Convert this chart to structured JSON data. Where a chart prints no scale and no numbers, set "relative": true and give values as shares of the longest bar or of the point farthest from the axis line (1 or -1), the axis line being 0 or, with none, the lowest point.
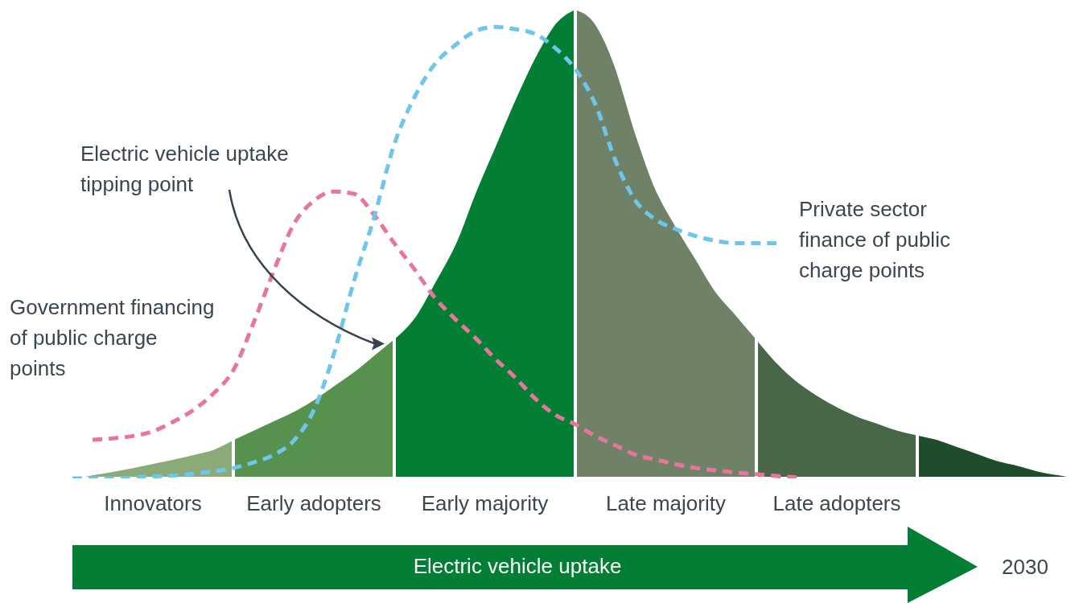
{
  "chart_data": {
    "type": "area",
    "relative": true,
    "xlabel": "Electric vehicle uptake",
    "annotations": [
      "Electric vehicle uptake tipping point",
      "2030"
    ],
    "categories": [
      null,
      null,
      null,
      null,
      null,
      null,
      null,
      null,
      null,
      null,
      null,
      null,
      null,
      null,
      null,
      null,
      null,
      null,
      null,
      null,
      null,
      null,
      null,
      null,
      null,
      null,
      null,
      null,
      null,
      null,
      null,
      null,
      null,
      null,
      null,
      null,
      null,
      null,
      null,
      null,
      null,
      null,
      null,
      null,
      null,
      null,
      null,
      null,
      null,
      null,
      null
    ],
    "series": [
      {
        "name": "Innovators",
        "color": "#8aab78",
        "values": [
          0,
          0.01,
          0.017,
          0.025,
          0.034,
          0.043,
          0.053,
          0.064,
          0.085,
          null,
          null,
          null,
          null,
          null,
          null,
          null,
          null,
          null,
          null,
          null,
          null,
          null,
          null,
          null,
          null,
          null,
          null,
          null,
          null,
          null,
          null,
          null,
          null,
          null,
          null,
          null,
          null,
          null,
          null,
          null,
          null,
          null,
          null,
          null,
          null,
          null,
          null,
          null,
          null,
          null,
          null
        ]
      },
      {
        "name": "Early adopters",
        "color": "#56924e",
        "values": [
          null,
          null,
          null,
          null,
          null,
          null,
          null,
          null,
          0.085,
          0.105,
          0.125,
          0.145,
          0.17,
          0.2,
          0.23,
          0.265,
          0.3,
          null,
          null,
          null,
          null,
          null,
          null,
          null,
          null,
          null,
          null,
          null,
          null,
          null,
          null,
          null,
          null,
          null,
          null,
          null,
          null,
          null,
          null,
          null,
          null,
          null,
          null,
          null,
          null,
          null,
          null,
          null,
          null,
          null,
          null
        ]
      },
      {
        "name": "Early majority",
        "color": "#037f35",
        "values": [
          null,
          null,
          null,
          null,
          null,
          null,
          null,
          null,
          null,
          null,
          null,
          null,
          null,
          null,
          null,
          null,
          0.3,
          0.345,
          0.42,
          0.5,
          0.61,
          0.71,
          0.81,
          0.9,
          0.97,
          1,
          null,
          null,
          null,
          null,
          null,
          null,
          null,
          null,
          null,
          null,
          null,
          null,
          null,
          null,
          null,
          null,
          null,
          null,
          null,
          null,
          null,
          null,
          null,
          null,
          null
        ]
      },
      {
        "name": "Late majority",
        "color": "#6f8268",
        "values": [
          null,
          null,
          null,
          null,
          null,
          null,
          null,
          null,
          null,
          null,
          null,
          null,
          null,
          null,
          null,
          null,
          null,
          null,
          null,
          null,
          null,
          null,
          null,
          null,
          null,
          1,
          0.97,
          0.88,
          0.74,
          0.62,
          0.54,
          0.47,
          0.4,
          0.35,
          0.3,
          null,
          null,
          null,
          null,
          null,
          null,
          null,
          null,
          null,
          null,
          null,
          null,
          null,
          null,
          null,
          null
        ]
      },
      {
        "name": "Late adopters",
        "color": "#476747",
        "values": [
          null,
          null,
          null,
          null,
          null,
          null,
          null,
          null,
          null,
          null,
          null,
          null,
          null,
          null,
          null,
          null,
          null,
          null,
          null,
          null,
          null,
          null,
          null,
          null,
          null,
          null,
          null,
          null,
          null,
          null,
          null,
          null,
          null,
          null,
          0.3,
          0.25,
          0.21,
          0.18,
          0.155,
          0.135,
          0.12,
          0.105,
          0.095,
          null,
          null,
          null,
          null,
          null,
          null,
          null,
          null
        ]
      },
      {
        "color": "#1f4d2c",
        "values": [
          null,
          null,
          null,
          null,
          null,
          null,
          null,
          null,
          null,
          null,
          null,
          null,
          null,
          null,
          null,
          null,
          null,
          null,
          null,
          null,
          null,
          null,
          null,
          null,
          null,
          null,
          null,
          null,
          null,
          null,
          null,
          null,
          null,
          null,
          null,
          null,
          null,
          null,
          null,
          null,
          null,
          null,
          0.095,
          0.085,
          0.07,
          0.055,
          0.04,
          0.03,
          0.018,
          0.01,
          0.003
        ]
      },
      {
        "name": "Government financing of public charge points",
        "type": "line",
        "line_style": "dashed",
        "color": "#e8769c",
        "values": [
          null,
          0.082,
          0.085,
          0.09,
          0.1,
          0.12,
          0.145,
          0.18,
          0.23,
          0.33,
          0.44,
          0.54,
          0.59,
          0.61,
          0.605,
          0.56,
          0.5,
          0.445,
          0.385,
          0.34,
          0.3,
          0.255,
          0.215,
          0.17,
          0.135,
          0.115,
          0.09,
          0.07,
          0.05,
          0.04,
          0.03,
          0.022,
          0.017,
          0.012,
          0.009,
          0.005,
          0.002,
          null,
          null,
          null,
          null,
          null,
          null,
          null,
          null,
          null,
          null,
          null,
          null,
          null,
          null
        ]
      },
      {
        "name": "Private sector finance of public charge points",
        "type": "line",
        "line_style": "dashed",
        "color": "#6ec6ea",
        "values": [
          0,
          0,
          0,
          0.002,
          0.004,
          0.006,
          0.01,
          0.015,
          0.022,
          0.034,
          0.05,
          0.08,
          0.145,
          0.265,
          0.42,
          0.555,
          0.71,
          0.81,
          0.88,
          0.92,
          0.95,
          0.96,
          0.955,
          0.945,
          0.915,
          0.87,
          0.795,
          0.675,
          0.59,
          0.55,
          0.53,
          0.515,
          0.505,
          0.5,
          0.5,
          0.5,
          null,
          null,
          null,
          null,
          null,
          null,
          null,
          null,
          null,
          null,
          null,
          null,
          null,
          null,
          null
        ]
      }
    ]
  }
}
